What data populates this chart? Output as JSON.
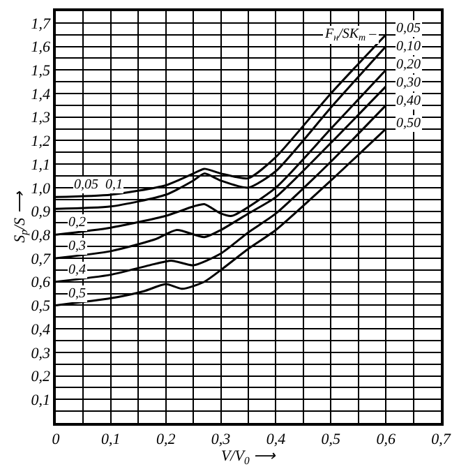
{
  "chart_data": {
    "type": "line",
    "xlabel": "V/V$_{0}$ ⟶",
    "ylabel": "S$_{р}$/S ⟶",
    "legend_title": "F$_{н}$/SK$_{т}$ –",
    "xlim": [
      0,
      0.7
    ],
    "ylim": [
      0,
      1.75
    ],
    "xticks": [
      0,
      {
        "value": 0.05,
        "label": null
      },
      {
        "value": 0.1,
        "label": "0,1"
      },
      {
        "value": 0.15,
        "label": null
      },
      {
        "value": 0.2,
        "label": "0,2"
      },
      {
        "value": 0.25,
        "label": null
      },
      {
        "value": 0.3,
        "label": "0,3"
      },
      {
        "value": 0.35,
        "label": null
      },
      {
        "value": 0.4,
        "label": "0,4"
      },
      {
        "value": 0.45,
        "label": null
      },
      {
        "value": 0.5,
        "label": "0,5"
      },
      {
        "value": 0.55,
        "label": null
      },
      {
        "value": 0.6,
        "label": "0,6"
      },
      {
        "value": 0.65,
        "label": null
      },
      {
        "value": 0.7,
        "label": "0,7"
      }
    ],
    "yticks": [
      {
        "value": 0.05,
        "label": null
      },
      {
        "value": 0.1,
        "label": "0,1"
      },
      {
        "value": 0.15,
        "label": null
      },
      {
        "value": 0.2,
        "label": "0,2"
      },
      {
        "value": 0.25,
        "label": null
      },
      {
        "value": 0.3,
        "label": "0,3"
      },
      {
        "value": 0.35,
        "label": null
      },
      {
        "value": 0.4,
        "label": "0,4"
      },
      {
        "value": 0.45,
        "label": null
      },
      {
        "value": 0.5,
        "label": "0,5"
      },
      {
        "value": 0.55,
        "label": null
      },
      {
        "value": 0.6,
        "label": "0,6"
      },
      {
        "value": 0.65,
        "label": null
      },
      {
        "value": 0.7,
        "label": "0,7"
      },
      {
        "value": 0.75,
        "label": null
      },
      {
        "value": 0.8,
        "label": "0,8"
      },
      {
        "value": 0.85,
        "label": null
      },
      {
        "value": 0.9,
        "label": "0,9"
      },
      {
        "value": 0.95,
        "label": null
      },
      {
        "value": 1.0,
        "label": "1,0"
      },
      {
        "value": 1.05,
        "label": null
      },
      {
        "value": 1.1,
        "label": "1,1"
      },
      {
        "value": 1.15,
        "label": null
      },
      {
        "value": 1.2,
        "label": "1,2"
      },
      {
        "value": 1.25,
        "label": null
      },
      {
        "value": 1.3,
        "label": "1,3"
      },
      {
        "value": 1.35,
        "label": null
      },
      {
        "value": 1.4,
        "label": "1,4"
      },
      {
        "value": 1.45,
        "label": null
      },
      {
        "value": 1.5,
        "label": "1,5"
      },
      {
        "value": 1.55,
        "label": null
      },
      {
        "value": 1.6,
        "label": "1,6"
      },
      {
        "value": 1.65,
        "label": null
      },
      {
        "value": 1.7,
        "label": "1,7"
      }
    ],
    "grid": true,
    "legend": false,
    "marker": "none",
    "line_style": "solid",
    "series": [
      {
        "name": "0,05",
        "color": "#000000",
        "x": [
          0,
          0.1,
          0.2,
          0.25,
          0.27,
          0.3,
          0.35,
          0.4,
          0.5,
          0.6
        ],
        "values": [
          0.96,
          0.97,
          1.01,
          1.06,
          1.08,
          1.06,
          1.04,
          1.13,
          1.4,
          1.65
        ]
      },
      {
        "name": "0,10",
        "color": "#000000",
        "x": [
          0,
          0.1,
          0.2,
          0.25,
          0.27,
          0.3,
          0.35,
          0.4,
          0.5,
          0.6
        ],
        "values": [
          0.91,
          0.92,
          0.97,
          1.03,
          1.06,
          1.03,
          1.0,
          1.07,
          1.34,
          1.6
        ]
      },
      {
        "name": "0,20",
        "color": "#000000",
        "x": [
          0,
          0.1,
          0.2,
          0.25,
          0.27,
          0.3,
          0.32,
          0.4,
          0.5,
          0.6
        ],
        "values": [
          0.8,
          0.83,
          0.88,
          0.92,
          0.93,
          0.89,
          0.88,
          1.0,
          1.25,
          1.5
        ]
      },
      {
        "name": "0,30",
        "color": "#000000",
        "x": [
          0,
          0.1,
          0.18,
          0.22,
          0.27,
          0.3,
          0.35,
          0.4,
          0.5,
          0.6
        ],
        "values": [
          0.7,
          0.73,
          0.78,
          0.82,
          0.79,
          0.82,
          0.89,
          0.96,
          1.19,
          1.43
        ]
      },
      {
        "name": "0,40",
        "color": "#000000",
        "x": [
          0,
          0.1,
          0.17,
          0.21,
          0.25,
          0.3,
          0.35,
          0.4,
          0.5,
          0.6
        ],
        "values": [
          0.6,
          0.63,
          0.67,
          0.69,
          0.67,
          0.72,
          0.81,
          0.89,
          1.11,
          1.35
        ]
      },
      {
        "name": "0,50",
        "color": "#000000",
        "x": [
          0,
          0.1,
          0.16,
          0.2,
          0.23,
          0.27,
          0.3,
          0.35,
          0.4,
          0.5,
          0.6
        ],
        "values": [
          0.5,
          0.53,
          0.56,
          0.59,
          0.57,
          0.6,
          0.65,
          0.74,
          0.82,
          1.03,
          1.25
        ]
      }
    ],
    "annotations": [
      "0,05  0,1",
      "0,2",
      "0,3",
      "0,4",
      "0,5"
    ]
  }
}
